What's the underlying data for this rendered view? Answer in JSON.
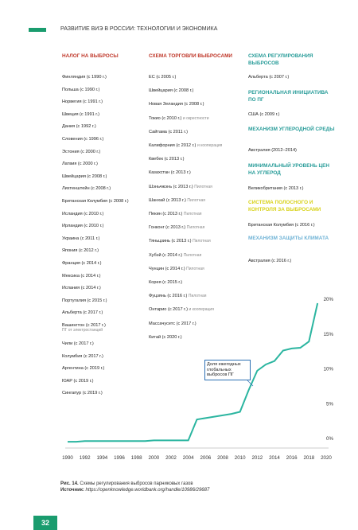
{
  "header": {
    "title": "РАЗВИТИЕ ВИЭ В РОССИИ: ТЕХНОЛОГИИ И ЭКОНОМИКА"
  },
  "columns": [
    {
      "groups": [
        {
          "heading": "НАЛОГ НА ВЫБРОСЫ",
          "color": "#c0392b",
          "items": [
            {
              "text": "Финляндия (с 1990 г.)"
            },
            {
              "text": "Польша (с 1990 г.)"
            },
            {
              "text": "Норвегия (с 1991 г.)"
            },
            {
              "text": "Швеция (с 1991 г.)"
            },
            {
              "text": "Дания (с 1992 г.)"
            },
            {
              "text": "Словения (с 1996 г.)"
            },
            {
              "text": "Эстония (с 2000 г.)"
            },
            {
              "text": "Латвия (с 2000 г.)"
            },
            {
              "text": "Швейцария (с 2008 г.)"
            },
            {
              "text": "Лихтенштейн (с 2008 г.)"
            },
            {
              "text": "Британская Колумбия (с 2008 г.)"
            },
            {
              "text": "Исландия (с 2010 г.)"
            },
            {
              "text": "Ирландия (с 2010 г.)"
            },
            {
              "text": "Украина (с 2011 г.)"
            },
            {
              "text": "Япония (с 2012 г.)"
            },
            {
              "text": "Франция (с 2014 г.)"
            },
            {
              "text": "Мексика (с 2014 г.)"
            },
            {
              "text": "Испания (с 2014 г.)"
            },
            {
              "text": "Португалия (с 2015 г.)"
            },
            {
              "text": "Альберта (с 2017 г.)"
            },
            {
              "text": "Вашингтон (с 2017 г.)",
              "note": "ПГ от электростанций"
            },
            {
              "text": "Чили (с 2017 г.)"
            },
            {
              "text": "Колумбия (с 2017 г.)"
            },
            {
              "text": "Аргентина (с 2019 г.)"
            },
            {
              "text": "ЮАР (с 2019 г.)"
            },
            {
              "text": "Сингапур (с 2019 г.)"
            }
          ]
        }
      ]
    },
    {
      "groups": [
        {
          "heading": "СХЕМА ТОРГОВЛИ ВЫБРОСАМИ",
          "color": "#c0392b",
          "items": [
            {
              "text": "ЕС (с 2005 г.)"
            },
            {
              "text": "Швейцария (с 2008 г.)"
            },
            {
              "text": "Новая Зеландия (с 2008 г.)"
            },
            {
              "text": "Токио (с 2010 г.)",
              "note": "и окрестности"
            },
            {
              "text": "Сайтама (с 2011 г.)"
            },
            {
              "text": "Калифорния (с 2012 г.)",
              "note": "и кооперация"
            },
            {
              "text": "Квебек (с 2013 г.)"
            },
            {
              "text": "Казахстан (с 2013 г.)"
            },
            {
              "text": "Шэньчжэнь (с 2013 г.)",
              "note": "Пилотная"
            },
            {
              "text": "Шанхай (с 2013 г.)",
              "note": "Пилотная"
            },
            {
              "text": "Пекин (с 2013 г.)",
              "note": "Пилотная"
            },
            {
              "text": "Гонконг (с 2013 г.)",
              "note": "Пилотная"
            },
            {
              "text": "Тяньцзинь (с 2013 г.)",
              "note": "Пилотная"
            },
            {
              "text": "Хубэй (с 2014 г.)",
              "note": "Пилотная"
            },
            {
              "text": "Чунцин (с 2014 г.)",
              "note": "Пилотная"
            },
            {
              "text": "Корея (с 2015 г.)"
            },
            {
              "text": "Фуцзянь (с 2016 г.)",
              "note": "Пилотная"
            },
            {
              "text": "Онтарио (с 2017 г.)",
              "note": "и кооперация"
            },
            {
              "text": "Массачусетс (с 2017 г.)"
            },
            {
              "text": "Китай (с 2020 г.)"
            }
          ]
        }
      ]
    },
    {
      "groups": [
        {
          "heading": "СХЕМА РЕГУЛИРОВАНИЯ ВЫБРОСОВ",
          "color": "#2a9d9a",
          "items": [
            {
              "text": "Альберта (с 2007 г.)"
            }
          ]
        },
        {
          "heading": "РЕГИОНАЛЬНАЯ ИНИЦИАТИВА ПО ПГ",
          "color": "#2a9d9a",
          "items": [
            {
              "text": "США (с 2009 г.)"
            }
          ]
        },
        {
          "heading": "МЕХАНИЗМ УГЛЕРОДНОЙ СРЕДЫ",
          "color": "#2a9d9a",
          "items": [
            {
              "text": "Австралия (2012–2014)"
            }
          ]
        },
        {
          "heading": "МИНИМАЛЬНЫЙ УРОВЕНЬ ЦЕН НА УГЛЕРОД",
          "color": "#2a9d9a",
          "items": [
            {
              "text": "Великобритания (с 2013 г.)"
            }
          ]
        },
        {
          "heading": "СИСТЕМА ПОЛОСНОГО И КОНТРОЛЯ ЗА ВЫБРОСАМИ",
          "color": "#d8d21a",
          "items": [
            {
              "text": "Британская Колумбия (с 2016 г.)"
            }
          ]
        },
        {
          "heading": "МЕХАНИЗМ ЗАЩИТЫ КЛИМАТА",
          "color": "#6fb3d6",
          "items": [
            {
              "text": "Австралия (с 2016 г.)"
            }
          ]
        }
      ]
    }
  ],
  "chart_data": {
    "type": "line",
    "color": "#2bb5a0",
    "x": [
      1990,
      1991,
      1992,
      1993,
      1994,
      1995,
      1996,
      1997,
      1998,
      1999,
      2000,
      2001,
      2002,
      2003,
      2004,
      2005,
      2006,
      2007,
      2008,
      2009,
      2010,
      2011,
      2012,
      2013,
      2014,
      2015,
      2016,
      2017,
      2018,
      2019
    ],
    "values": [
      0.1,
      0.1,
      0.2,
      0.2,
      0.2,
      0.2,
      0.2,
      0.2,
      0.2,
      0.2,
      0.3,
      0.3,
      0.3,
      0.3,
      0.3,
      3.3,
      3.5,
      3.7,
      3.9,
      4.1,
      4.4,
      7.5,
      10.3,
      11.2,
      11.7,
      13.2,
      13.5,
      13.6,
      14.5,
      20
    ],
    "xlim": [
      1990,
      2020
    ],
    "xticks": [
      1990,
      1992,
      1994,
      1996,
      1998,
      2000,
      2002,
      2004,
      2006,
      2008,
      2010,
      2012,
      2014,
      2016,
      2018,
      2020
    ],
    "ylim": [
      0,
      20
    ],
    "yticks": [
      {
        "value": 0,
        "label": "0%"
      },
      {
        "value": 5,
        "label": "5%"
      },
      {
        "value": 10,
        "label": "10%"
      },
      {
        "value": 15,
        "label": "15%"
      },
      {
        "value": 20,
        "label": "20%"
      }
    ],
    "annotation": "Доля ежегодных глобальных выбросов ПГ"
  },
  "caption": {
    "label": "Рис. 14.",
    "text": "Схемы регулирования выбросов парниковых газов",
    "source_label": "Источник:",
    "source_url": "https://openknowledge.worldbank.org/handle/10986/29687"
  },
  "page_number": "32"
}
